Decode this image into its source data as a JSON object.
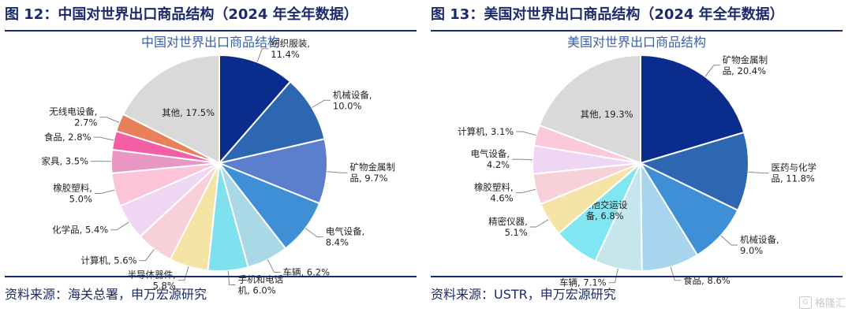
{
  "panels": [
    {
      "figure_title": "图 12：中国对世界出口商品结构（2024 年全年数据）",
      "source": "资料来源：海关总署，申万宏源研究"
    },
    {
      "figure_title": "图 13：美国对世界出口商品结构（2024 年全年数据）",
      "source": "资料来源：USTR，申万宏源研究"
    }
  ],
  "watermark": "格隆汇",
  "chart_data": [
    {
      "type": "pie",
      "title": "中国对世界出口商品结构",
      "slices": [
        {
          "label": [
            "纺织服装,",
            "11.4%"
          ],
          "value": 11.4,
          "color": "#0a2c8c"
        },
        {
          "label": [
            "机械设备,",
            "10.0%"
          ],
          "value": 10.0,
          "color": "#2e67b1"
        },
        {
          "label": [
            "矿物金属制",
            "品, 9.7%"
          ],
          "value": 9.7,
          "color": "#5b7fcc"
        },
        {
          "label": [
            "电气设备,",
            "8.4%"
          ],
          "value": 8.4,
          "color": "#3f8fd6"
        },
        {
          "label": [
            "车辆, 6.2%"
          ],
          "value": 6.2,
          "color": "#a9d8e6"
        },
        {
          "label": [
            "手机和电话",
            "机, 6.0%"
          ],
          "value": 6.0,
          "color": "#7fe0ee"
        },
        {
          "label": [
            "半导体器件,",
            "5.8%"
          ],
          "value": 5.8,
          "color": "#f6e3a6"
        },
        {
          "label": [
            "计算机, 5.6%"
          ],
          "value": 5.6,
          "color": "#f8d0d8"
        },
        {
          "label": [
            "化学品, 5.4%"
          ],
          "value": 5.4,
          "color": "#efd6f3"
        },
        {
          "label": [
            "橡胶塑料,",
            "5.0%"
          ],
          "value": 5.0,
          "color": "#fbc4d8"
        },
        {
          "label": [
            "家具, 3.5%"
          ],
          "value": 3.5,
          "color": "#e896c4"
        },
        {
          "label": [
            "食品, 2.8%"
          ],
          "value": 2.8,
          "color": "#f35ea4"
        },
        {
          "label": [
            "无线电设备,",
            "2.7%"
          ],
          "value": 2.7,
          "color": "#e8815a"
        },
        {
          "label": [
            "其他, 17.5%"
          ],
          "value": 17.5,
          "color": "#d9d9d9"
        }
      ]
    },
    {
      "type": "pie",
      "title": "美国对世界出口商品结构",
      "slices": [
        {
          "label": [
            "矿物金属制",
            "品, 20.4%"
          ],
          "value": 20.4,
          "color": "#0a2c8c"
        },
        {
          "label": [
            "医药与化学",
            "品, 11.8%"
          ],
          "value": 11.8,
          "color": "#2e67b1"
        },
        {
          "label": [
            "机械设备,",
            "9.0%"
          ],
          "value": 9.0,
          "color": "#3f8fd6"
        },
        {
          "label": [
            "食品, 8.6%"
          ],
          "value": 8.6,
          "color": "#a9d4ee"
        },
        {
          "label": [
            "车辆, 7.1%"
          ],
          "value": 7.1,
          "color": "#c4e6ec"
        },
        {
          "label": [
            "其他交运设",
            "备, 6.8%"
          ],
          "value": 6.8,
          "color": "#7fe6f2"
        },
        {
          "label": [
            "精密仪器,",
            "5.1%"
          ],
          "value": 5.1,
          "color": "#f6e3a6"
        },
        {
          "label": [
            "橡胶塑料,",
            "4.6%"
          ],
          "value": 4.6,
          "color": "#f8d0d8"
        },
        {
          "label": [
            "电气设备,",
            "4.2%"
          ],
          "value": 4.2,
          "color": "#efd6f5"
        },
        {
          "label": [
            "计算机, 3.1%"
          ],
          "value": 3.1,
          "color": "#fbc8dc"
        },
        {
          "label": [
            "其他, 19.3%"
          ],
          "value": 19.3,
          "color": "#d9d9d9"
        }
      ]
    }
  ]
}
